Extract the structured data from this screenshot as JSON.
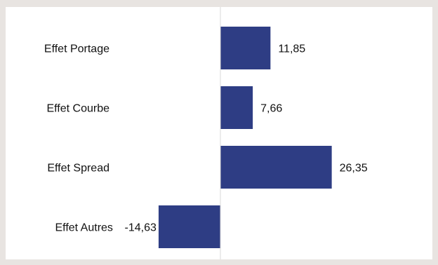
{
  "chart_data": {
    "type": "bar",
    "orientation": "horizontal",
    "categories": [
      "Effet Portage",
      "Effet Courbe",
      "Effet Spread",
      "Effet Autres"
    ],
    "values": [
      11.85,
      7.66,
      26.35,
      -14.63
    ],
    "value_labels": [
      "11,85",
      "7,66",
      "26,35",
      "-14,63"
    ],
    "title": "",
    "xlabel": "",
    "ylabel": "",
    "bar_color": "#2e3d84",
    "axis_color": "#d9d9d9",
    "grid": false,
    "legend": "none"
  }
}
